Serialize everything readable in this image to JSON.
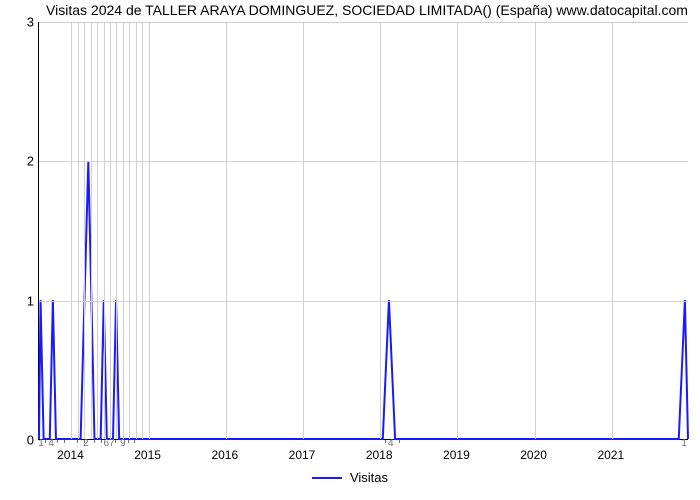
{
  "chart": {
    "type": "line",
    "title": "Visitas 2024 de TALLER ARAYA DOMINGUEZ, SOCIEDAD LIMITADA() (España) www.datocapital.com",
    "title_fontsize": 14,
    "title_color": "#000000",
    "background_color": "#ffffff",
    "line_color": "#1a1aff",
    "line_width": 2,
    "grid_color": "#d0d0d0",
    "axis_color": "#000000",
    "y": {
      "min": 0,
      "max": 3,
      "ticks": [
        0,
        1,
        2,
        3
      ],
      "tick_fontsize": 13
    },
    "x": {
      "min": 2013.58,
      "max": 2022.0,
      "year_ticks": [
        2014,
        2015,
        2016,
        2017,
        2018,
        2019,
        2020,
        2021
      ],
      "year_tick_fontsize": 12,
      "minor_labels": [
        {
          "x": 2013.62,
          "text": "1"
        },
        {
          "x": 2013.75,
          "text": "4"
        },
        {
          "x": 2014.2,
          "text": "2"
        },
        {
          "x": 2014.5,
          "text": "67"
        },
        {
          "x": 2014.68,
          "text": "9"
        },
        {
          "x": 2018.15,
          "text": "4"
        },
        {
          "x": 2021.95,
          "text": "1"
        }
      ],
      "minor_tick_marks": [
        2013.67,
        2013.83,
        2013.92,
        2014.08,
        2014.17,
        2014.3,
        2014.4,
        2014.58,
        2014.75,
        2014.83,
        2018.08,
        2018.25
      ]
    },
    "grid": {
      "v_positions": [
        2014,
        2015,
        2016,
        2017,
        2018,
        2019,
        2020,
        2021
      ],
      "h_positions": [
        1,
        2,
        3
      ],
      "minor_v_positions": [
        2014.083,
        2014.167,
        2014.25,
        2014.333,
        2014.417,
        2014.5,
        2014.583,
        2014.667,
        2014.75,
        2014.833,
        2014.917
      ]
    },
    "series": {
      "name": "Visitas",
      "points": [
        [
          2013.6,
          1
        ],
        [
          2013.64,
          0
        ],
        [
          2013.72,
          0
        ],
        [
          2013.76,
          1
        ],
        [
          2013.8,
          0
        ],
        [
          2014.12,
          0
        ],
        [
          2014.22,
          2
        ],
        [
          2014.3,
          0
        ],
        [
          2014.38,
          0
        ],
        [
          2014.42,
          1
        ],
        [
          2014.46,
          0
        ],
        [
          2014.54,
          0
        ],
        [
          2014.58,
          1
        ],
        [
          2014.62,
          0
        ],
        [
          2014.72,
          0
        ],
        [
          2014.78,
          0
        ],
        [
          2018.04,
          0
        ],
        [
          2018.12,
          1
        ],
        [
          2018.2,
          0
        ],
        [
          2021.88,
          0
        ],
        [
          2021.96,
          1
        ]
      ]
    },
    "legend": {
      "label": "Visitas",
      "position": "bottom-center",
      "fontsize": 13
    }
  }
}
